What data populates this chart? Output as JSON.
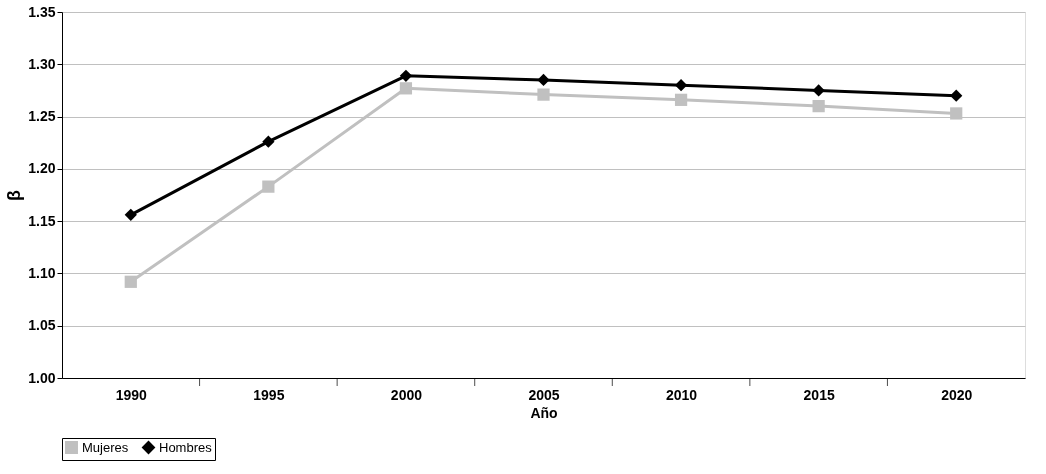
{
  "chart_data": {
    "type": "line",
    "xlabel": "Año",
    "ylabel": "β",
    "categories": [
      "1990",
      "1995",
      "2000",
      "2005",
      "2010",
      "2015",
      "2020"
    ],
    "series": [
      {
        "name": "Mujeres",
        "color": "#c0c0c0",
        "marker": "square",
        "values": [
          1.092,
          1.183,
          1.277,
          1.271,
          1.266,
          1.26,
          1.253
        ]
      },
      {
        "name": "Hombres",
        "color": "#000000",
        "marker": "diamond",
        "values": [
          1.156,
          1.226,
          1.289,
          1.285,
          1.28,
          1.275,
          1.27
        ]
      }
    ],
    "ylim": [
      1.0,
      1.35
    ],
    "yticks": [
      {
        "value": 1.0,
        "label": "1.00"
      },
      1.05,
      {
        "value": 1.1,
        "label": "1.10"
      },
      1.15,
      {
        "value": 1.2,
        "label": "1.20"
      },
      1.25,
      {
        "value": 1.3,
        "label": "1.30"
      },
      1.35
    ],
    "grid": "y",
    "legend": "bottom",
    "line_style": "solid"
  }
}
